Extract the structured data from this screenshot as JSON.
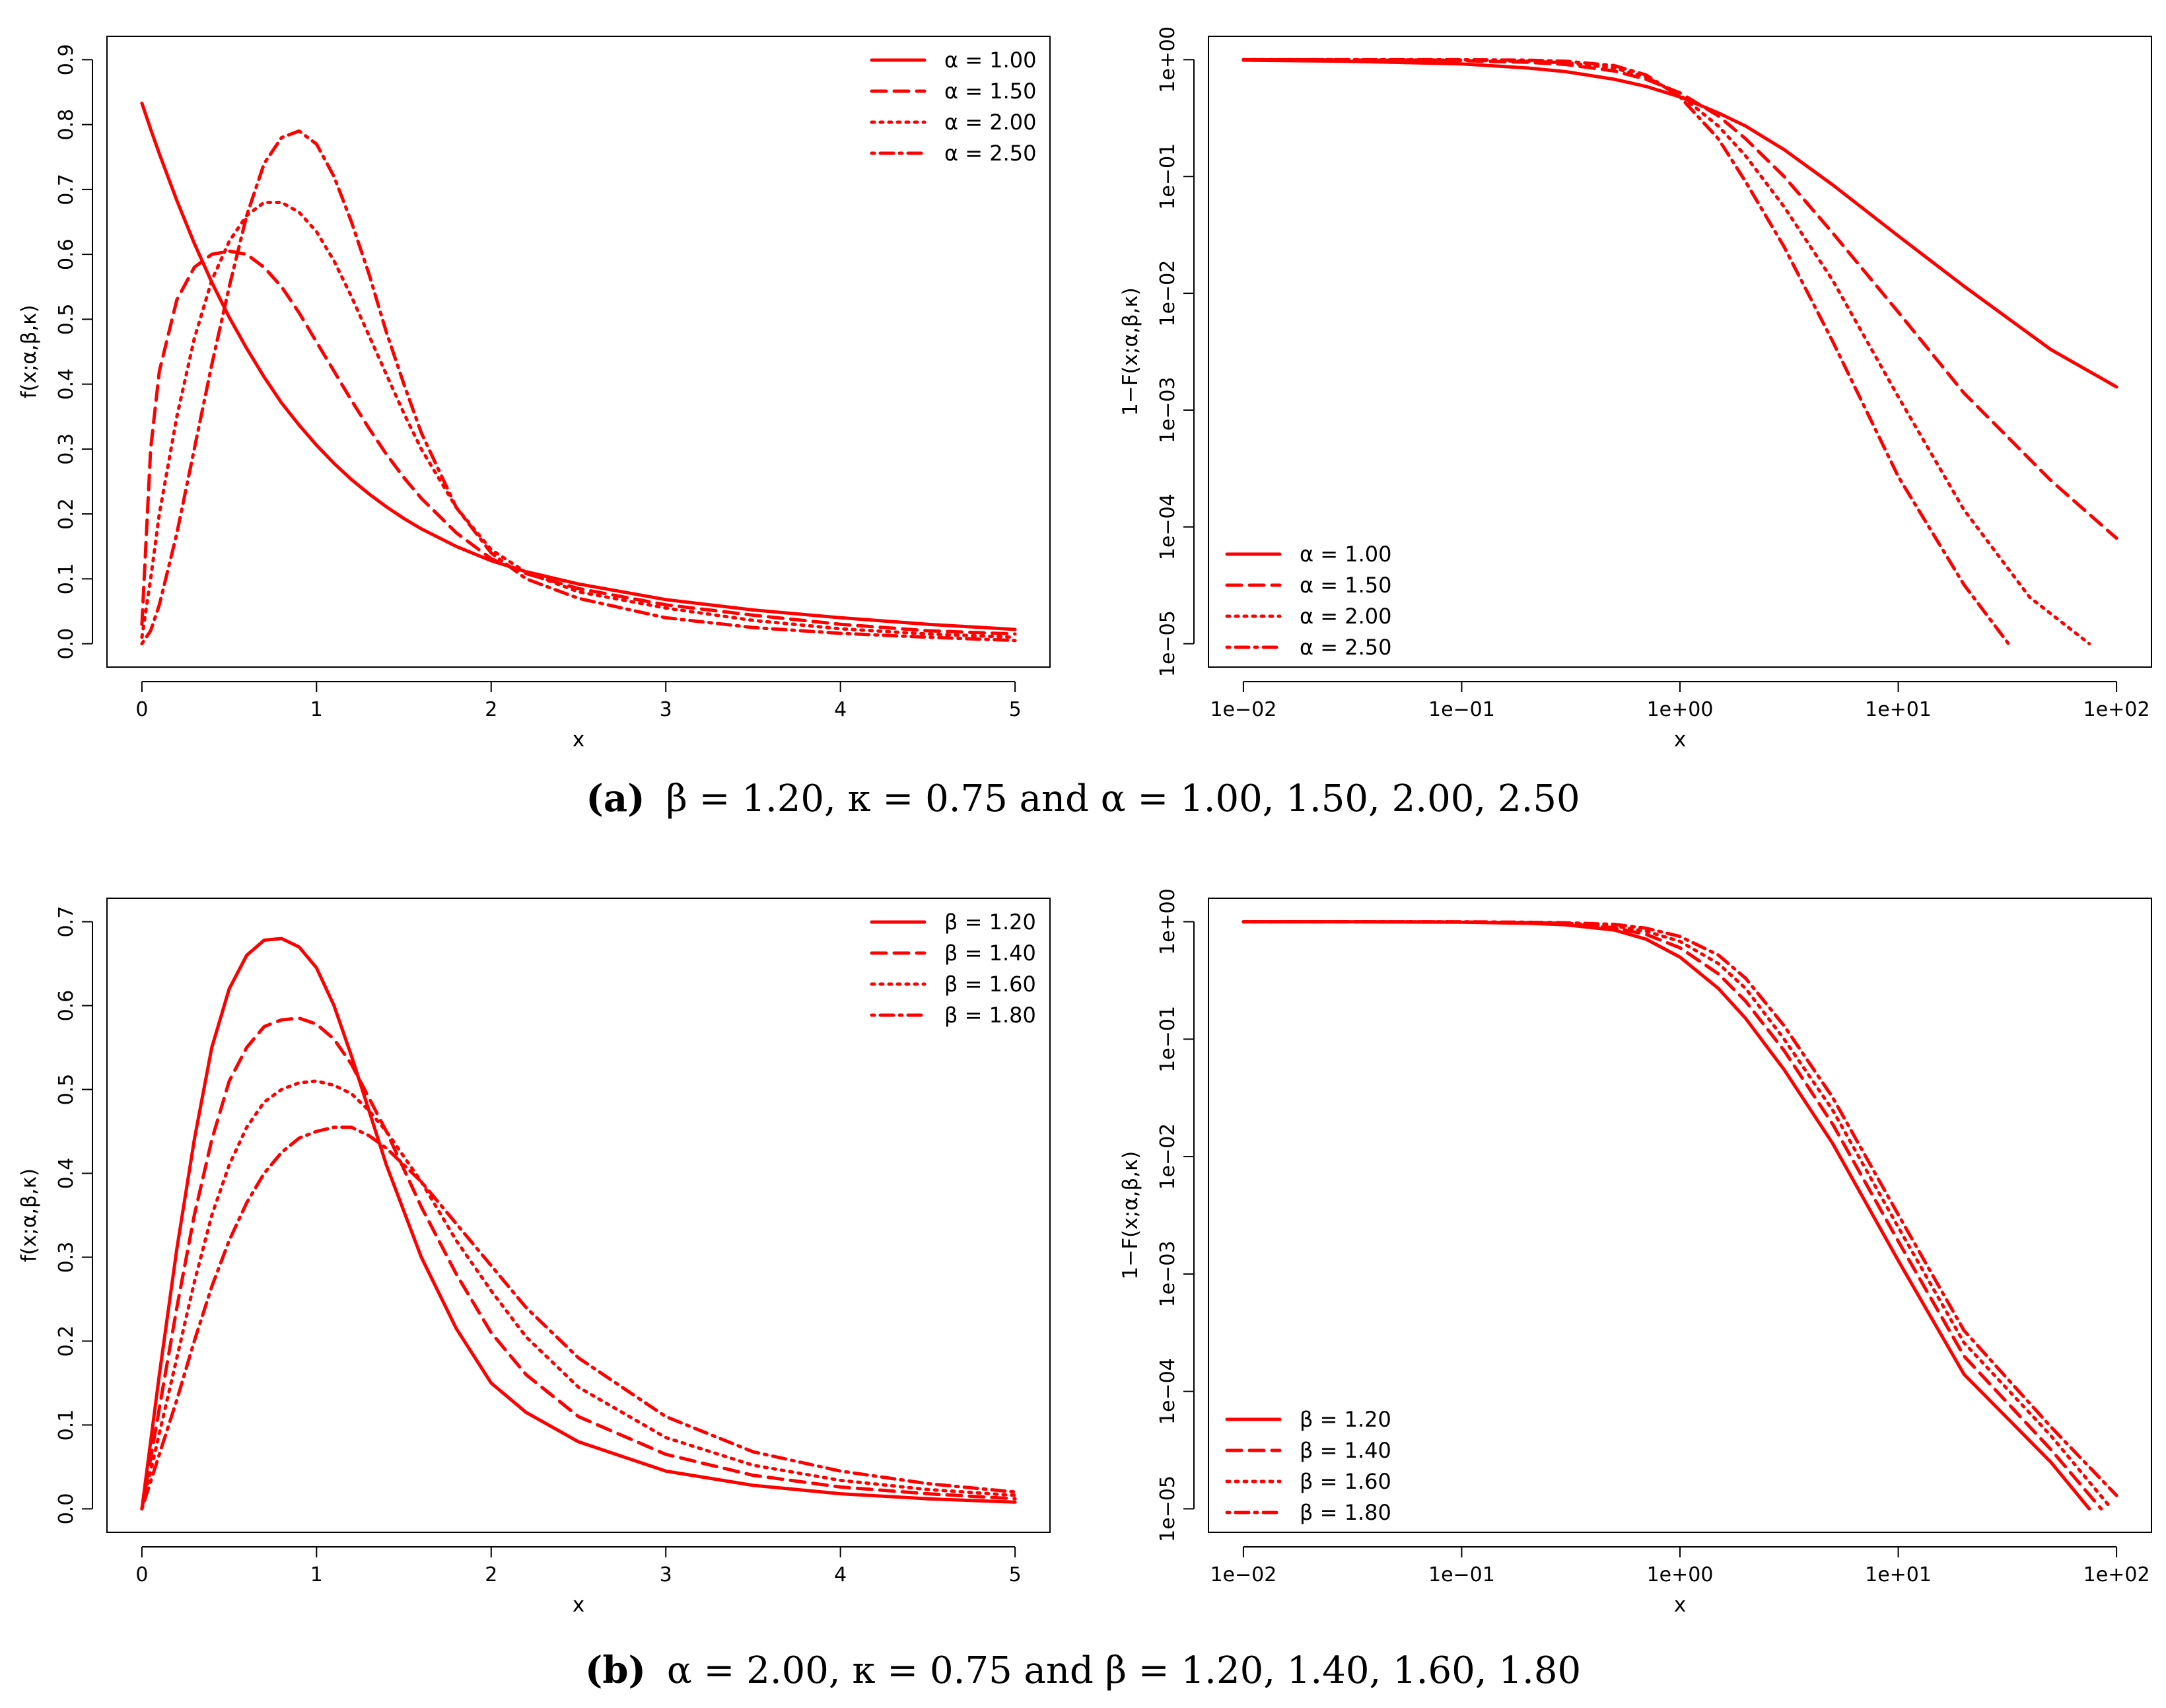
{
  "chart_data": [
    {
      "id": "a-pdf",
      "type": "line",
      "scale": "linear",
      "xlabel": "x",
      "ylabel": "f(x;α,β,κ)",
      "xlim": [
        0,
        5
      ],
      "ylim": [
        0,
        0.9
      ],
      "x_ticks": [
        0,
        1,
        2,
        3,
        4,
        5
      ],
      "x_tick_labels": [
        "0",
        "1",
        "2",
        "3",
        "4",
        "5"
      ],
      "y_ticks": [
        0,
        0.1,
        0.2,
        0.3,
        0.4,
        0.5,
        0.6,
        0.7,
        0.8,
        0.9
      ],
      "y_tick_labels": [
        "0.0",
        "0.1",
        "0.2",
        "0.3",
        "0.4",
        "0.5",
        "0.6",
        "0.7",
        "0.8",
        "0.9"
      ],
      "legend_position": "top-right",
      "color": "#ff0000",
      "x": [
        0,
        0.05,
        0.1,
        0.2,
        0.3,
        0.4,
        0.5,
        0.6,
        0.7,
        0.8,
        0.9,
        1.0,
        1.1,
        1.2,
        1.3,
        1.4,
        1.5,
        1.6,
        1.8,
        2.0,
        2.2,
        2.5,
        3.0,
        3.5,
        4.0,
        4.5,
        5.0
      ],
      "series": [
        {
          "name": "α = 1.00",
          "dash": "solid",
          "values": [
            0.833,
            0.793,
            0.755,
            0.683,
            0.617,
            0.557,
            0.503,
            0.455,
            0.411,
            0.371,
            0.337,
            0.306,
            0.278,
            0.253,
            0.231,
            0.211,
            0.193,
            0.177,
            0.15,
            0.128,
            0.111,
            0.092,
            0.068,
            0.052,
            0.04,
            0.03,
            0.022
          ]
        },
        {
          "name": "α = 1.50",
          "dash": "dashed",
          "values": [
            0.03,
            0.3,
            0.42,
            0.53,
            0.58,
            0.6,
            0.605,
            0.6,
            0.58,
            0.55,
            0.51,
            0.465,
            0.42,
            0.375,
            0.332,
            0.292,
            0.256,
            0.224,
            0.171,
            0.131,
            0.108,
            0.085,
            0.06,
            0.044,
            0.03,
            0.02,
            0.015
          ]
        },
        {
          "name": "α = 2.00",
          "dash": "dotted",
          "values": [
            0.01,
            0.1,
            0.2,
            0.35,
            0.47,
            0.56,
            0.62,
            0.66,
            0.68,
            0.68,
            0.665,
            0.635,
            0.59,
            0.535,
            0.475,
            0.415,
            0.355,
            0.3,
            0.21,
            0.145,
            0.11,
            0.08,
            0.055,
            0.036,
            0.023,
            0.015,
            0.01
          ]
        },
        {
          "name": "α = 2.50",
          "dash": "dotdash",
          "values": [
            0.0,
            0.02,
            0.06,
            0.17,
            0.3,
            0.43,
            0.55,
            0.66,
            0.74,
            0.78,
            0.79,
            0.77,
            0.72,
            0.65,
            0.57,
            0.48,
            0.4,
            0.325,
            0.21,
            0.14,
            0.1,
            0.07,
            0.04,
            0.025,
            0.016,
            0.01,
            0.005
          ]
        }
      ]
    },
    {
      "id": "a-survival",
      "type": "line",
      "scale": "log-log",
      "xlabel": "x",
      "ylabel": "1−F(x;α,β,κ)",
      "xlim": [
        0.01,
        100
      ],
      "ylim": [
        1e-05,
        1
      ],
      "x_ticks": [
        0.01,
        0.1,
        1,
        10,
        100
      ],
      "x_tick_labels": [
        "1e−02",
        "1e−01",
        "1e+00",
        "1e+01",
        "1e+02"
      ],
      "y_ticks": [
        1e-05,
        0.0001,
        0.001,
        0.01,
        0.1,
        1
      ],
      "y_tick_labels": [
        "1e−05",
        "1e−04",
        "1e−03",
        "1e−02",
        "1e−01",
        "1e+00"
      ],
      "legend_position": "bottom-left",
      "color": "#ff0000",
      "series": [
        {
          "name": "α = 1.00",
          "dash": "solid",
          "x": [
            0.01,
            0.03,
            0.1,
            0.2,
            0.3,
            0.5,
            0.7,
            1.0,
            1.5,
            2,
            3,
            5,
            10,
            20,
            50,
            100
          ],
          "values": [
            0.99,
            0.97,
            0.92,
            0.85,
            0.79,
            0.68,
            0.59,
            0.48,
            0.35,
            0.27,
            0.17,
            0.085,
            0.031,
            0.0115,
            0.0033,
            0.00158
          ]
        },
        {
          "name": "α = 1.50",
          "dash": "dashed",
          "x": [
            0.01,
            0.03,
            0.1,
            0.2,
            0.3,
            0.5,
            0.7,
            1.0,
            1.5,
            2,
            3,
            5,
            10,
            20,
            50,
            100
          ],
          "values": [
            1.0,
            0.995,
            0.98,
            0.95,
            0.91,
            0.8,
            0.68,
            0.52,
            0.33,
            0.21,
            0.1,
            0.033,
            0.0069,
            0.0014,
            0.00025,
            8e-05
          ]
        },
        {
          "name": "α = 2.00",
          "dash": "dotted",
          "x": [
            0.01,
            0.03,
            0.1,
            0.2,
            0.3,
            0.5,
            0.7,
            1.0,
            1.5,
            2,
            3,
            5,
            10,
            20,
            40,
            75
          ],
          "values": [
            1.0,
            1.0,
            0.99,
            0.97,
            0.94,
            0.85,
            0.71,
            0.5,
            0.27,
            0.15,
            0.055,
            0.013,
            0.0013,
            0.00014,
            2.5e-05,
            1e-05
          ]
        },
        {
          "name": "α = 2.50",
          "dash": "dotdash",
          "x": [
            0.01,
            0.03,
            0.1,
            0.2,
            0.3,
            0.5,
            0.7,
            1.0,
            1.5,
            2,
            3,
            5,
            10,
            20,
            32
          ],
          "values": [
            1.0,
            1.0,
            1.0,
            0.99,
            0.97,
            0.89,
            0.74,
            0.48,
            0.21,
            0.09,
            0.025,
            0.0039,
            0.00027,
            3.2e-05,
            1e-05
          ]
        }
      ]
    },
    {
      "id": "b-pdf",
      "type": "line",
      "scale": "linear",
      "xlabel": "x",
      "ylabel": "f(x;α,β,κ)",
      "xlim": [
        0,
        5
      ],
      "ylim": [
        0,
        0.7
      ],
      "x_ticks": [
        0,
        1,
        2,
        3,
        4,
        5
      ],
      "x_tick_labels": [
        "0",
        "1",
        "2",
        "3",
        "4",
        "5"
      ],
      "y_ticks": [
        0,
        0.1,
        0.2,
        0.3,
        0.4,
        0.5,
        0.6,
        0.7
      ],
      "y_tick_labels": [
        "0.0",
        "0.1",
        "0.2",
        "0.3",
        "0.4",
        "0.5",
        "0.6",
        "0.7"
      ],
      "legend_position": "top-right",
      "color": "#ff0000",
      "x": [
        0,
        0.1,
        0.2,
        0.3,
        0.4,
        0.5,
        0.6,
        0.7,
        0.8,
        0.9,
        1.0,
        1.1,
        1.2,
        1.3,
        1.4,
        1.6,
        1.8,
        2.0,
        2.2,
        2.5,
        3.0,
        3.5,
        4.0,
        4.5,
        5.0
      ],
      "series": [
        {
          "name": "β = 1.20",
          "dash": "solid",
          "values": [
            0.0,
            0.16,
            0.31,
            0.44,
            0.55,
            0.62,
            0.66,
            0.678,
            0.68,
            0.67,
            0.645,
            0.6,
            0.54,
            0.475,
            0.41,
            0.3,
            0.215,
            0.15,
            0.115,
            0.08,
            0.045,
            0.028,
            0.018,
            0.012,
            0.008
          ]
        },
        {
          "name": "β = 1.40",
          "dash": "dashed",
          "values": [
            0.0,
            0.12,
            0.24,
            0.35,
            0.44,
            0.51,
            0.55,
            0.575,
            0.583,
            0.585,
            0.578,
            0.56,
            0.53,
            0.49,
            0.45,
            0.36,
            0.28,
            0.21,
            0.16,
            0.11,
            0.065,
            0.04,
            0.026,
            0.018,
            0.012
          ]
        },
        {
          "name": "β = 1.60",
          "dash": "dotted",
          "values": [
            0.0,
            0.09,
            0.18,
            0.27,
            0.35,
            0.41,
            0.455,
            0.485,
            0.5,
            0.508,
            0.51,
            0.505,
            0.495,
            0.475,
            0.45,
            0.39,
            0.32,
            0.26,
            0.205,
            0.145,
            0.085,
            0.052,
            0.034,
            0.023,
            0.016
          ]
        },
        {
          "name": "β = 1.80",
          "dash": "dotdash",
          "values": [
            0.0,
            0.065,
            0.13,
            0.2,
            0.265,
            0.32,
            0.365,
            0.4,
            0.425,
            0.442,
            0.45,
            0.455,
            0.455,
            0.445,
            0.43,
            0.39,
            0.34,
            0.29,
            0.24,
            0.18,
            0.11,
            0.068,
            0.045,
            0.03,
            0.02
          ]
        }
      ]
    },
    {
      "id": "b-survival",
      "type": "line",
      "scale": "log-log",
      "xlabel": "x",
      "ylabel": "1−F(x;α,β,κ)",
      "xlim": [
        0.01,
        100
      ],
      "ylim": [
        1e-05,
        1
      ],
      "x_ticks": [
        0.01,
        0.1,
        1,
        10,
        100
      ],
      "x_tick_labels": [
        "1e−02",
        "1e−01",
        "1e+00",
        "1e+01",
        "1e+02"
      ],
      "y_ticks": [
        1e-05,
        0.0001,
        0.001,
        0.01,
        0.1,
        1
      ],
      "y_tick_labels": [
        "1e−05",
        "1e−04",
        "1e−03",
        "1e−02",
        "1e−01",
        "1e+00"
      ],
      "legend_position": "bottom-left",
      "color": "#ff0000",
      "series": [
        {
          "name": "β = 1.20",
          "dash": "solid",
          "x": [
            0.01,
            0.03,
            0.1,
            0.2,
            0.3,
            0.5,
            0.7,
            1.0,
            1.5,
            2,
            3,
            5,
            10,
            20,
            50,
            75
          ],
          "values": [
            1.0,
            1.0,
            0.99,
            0.97,
            0.94,
            0.85,
            0.71,
            0.5,
            0.27,
            0.15,
            0.055,
            0.013,
            0.0013,
            0.00014,
            2.5e-05,
            1e-05
          ]
        },
        {
          "name": "β = 1.40",
          "dash": "dashed",
          "x": [
            0.01,
            0.03,
            0.1,
            0.2,
            0.3,
            0.5,
            0.7,
            1.0,
            1.5,
            2,
            3,
            5,
            10,
            20,
            50,
            85
          ],
          "values": [
            1.0,
            1.0,
            0.995,
            0.98,
            0.96,
            0.89,
            0.78,
            0.6,
            0.36,
            0.21,
            0.08,
            0.019,
            0.0019,
            0.0002,
            3.2e-05,
            1e-05
          ]
        },
        {
          "name": "β = 1.60",
          "dash": "dotted",
          "x": [
            0.01,
            0.03,
            0.1,
            0.2,
            0.3,
            0.5,
            0.7,
            1.0,
            1.5,
            2,
            3,
            5,
            10,
            20,
            50,
            95
          ],
          "values": [
            1.0,
            1.0,
            0.997,
            0.985,
            0.97,
            0.92,
            0.83,
            0.68,
            0.44,
            0.27,
            0.1,
            0.025,
            0.0025,
            0.00026,
            4.2e-05,
            1e-05
          ]
        },
        {
          "name": "β = 1.80",
          "dash": "dotdash",
          "x": [
            0.01,
            0.03,
            0.1,
            0.2,
            0.3,
            0.5,
            0.7,
            1.0,
            1.5,
            2,
            3,
            5,
            10,
            20,
            50,
            100
          ],
          "values": [
            1.0,
            1.0,
            0.998,
            0.99,
            0.98,
            0.95,
            0.88,
            0.75,
            0.52,
            0.33,
            0.13,
            0.032,
            0.0032,
            0.00033,
            5e-05,
            1.3e-05
          ]
        }
      ]
    }
  ],
  "captions": {
    "a": {
      "label": "(a)",
      "text": "β = 1.20, κ = 0.75 and α = 1.00, 1.50, 2.00, 2.50"
    },
    "b": {
      "label": "(b)",
      "text": "α = 2.00, κ = 0.75 and β = 1.20, 1.40, 1.60, 1.80"
    }
  }
}
